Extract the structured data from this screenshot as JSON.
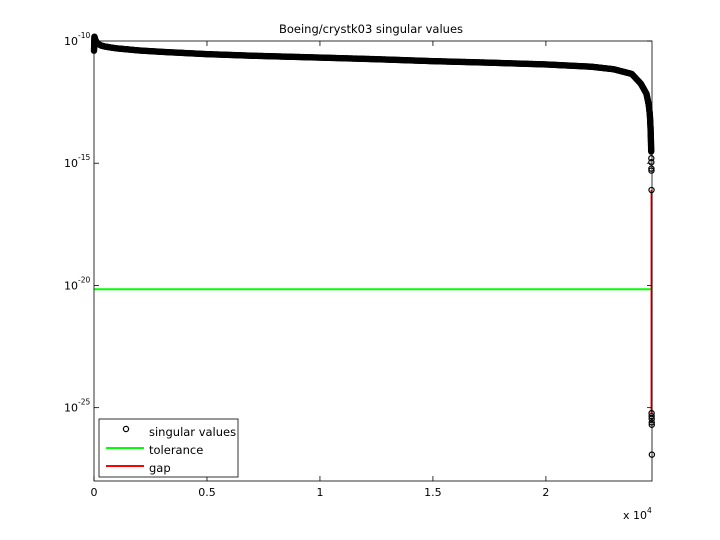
{
  "chart_data": {
    "type": "scatter",
    "title": "Boeing/crystk03 singular values",
    "xlabel": "",
    "ylabel": "",
    "x_multiplier": {
      "base": "x 10",
      "exp": "4"
    },
    "xlim": [
      0,
      24696
    ],
    "ylim": [
      1e-28,
      1e-10
    ],
    "y_scale": "log",
    "x_ticks": [
      {
        "value": 0,
        "label": "0"
      },
      {
        "value": 5000,
        "label": "0.5"
      },
      {
        "value": 10000,
        "label": "1"
      },
      {
        "value": 15000,
        "label": "1.5"
      },
      {
        "value": 20000,
        "label": "2"
      }
    ],
    "y_ticks": [
      {
        "value": 1e-10,
        "base": "10",
        "exp": "-10"
      },
      {
        "value": 1e-15,
        "base": "10",
        "exp": "-15"
      },
      {
        "value": 1e-20,
        "base": "10",
        "exp": "-20"
      },
      {
        "value": 1e-25,
        "base": "10",
        "exp": "-25"
      }
    ],
    "grid": false,
    "legend_position": "bottom-left",
    "series": [
      {
        "name": "singular values",
        "style": "markers",
        "color": "#000000",
        "curve": [
          [
            0,
            4e-11
          ],
          [
            20,
            1.5e-10
          ],
          [
            60,
            1.1e-10
          ],
          [
            150,
            8e-11
          ],
          [
            300,
            6.6e-11
          ],
          [
            500,
            5.9e-11
          ],
          [
            1000,
            5e-11
          ],
          [
            2000,
            4.1e-11
          ],
          [
            3000,
            3.6e-11
          ],
          [
            5000,
            2.9e-11
          ],
          [
            7000,
            2.5e-11
          ],
          [
            10000,
            2.1e-11
          ],
          [
            12500,
            1.8e-11
          ],
          [
            15000,
            1.5e-11
          ],
          [
            17500,
            1.3e-11
          ],
          [
            20000,
            1.1e-11
          ],
          [
            22000,
            8.9e-12
          ],
          [
            23000,
            7e-12
          ],
          [
            23800,
            4.5e-12
          ],
          [
            24200,
            1.8e-12
          ],
          [
            24450,
            7e-13
          ],
          [
            24550,
            2.5e-13
          ],
          [
            24600,
            1e-13
          ],
          [
            24630,
            3e-14
          ],
          [
            24650,
            8e-15
          ],
          [
            24660,
            3e-15
          ]
        ],
        "tail_points": [
          [
            24665,
            1.6e-15
          ],
          [
            24668,
            1.1e-15
          ],
          [
            24670,
            6e-16
          ],
          [
            24672,
            5e-16
          ],
          [
            24675,
            8e-17
          ],
          [
            24678,
            6e-26
          ],
          [
            24680,
            4.5e-26
          ],
          [
            24682,
            3.5e-26
          ],
          [
            24684,
            2.5e-26
          ],
          [
            24686,
            2e-26
          ],
          [
            24690,
            1.2e-27
          ]
        ]
      },
      {
        "name": "tolerance",
        "style": "line",
        "color": "#00ff00",
        "y": 7e-21,
        "x_range": [
          0,
          24696
        ]
      },
      {
        "name": "gap",
        "style": "line",
        "color": "#ff0000",
        "x": 24676,
        "y_range": [
          6e-26,
          8e-17
        ]
      }
    ]
  }
}
